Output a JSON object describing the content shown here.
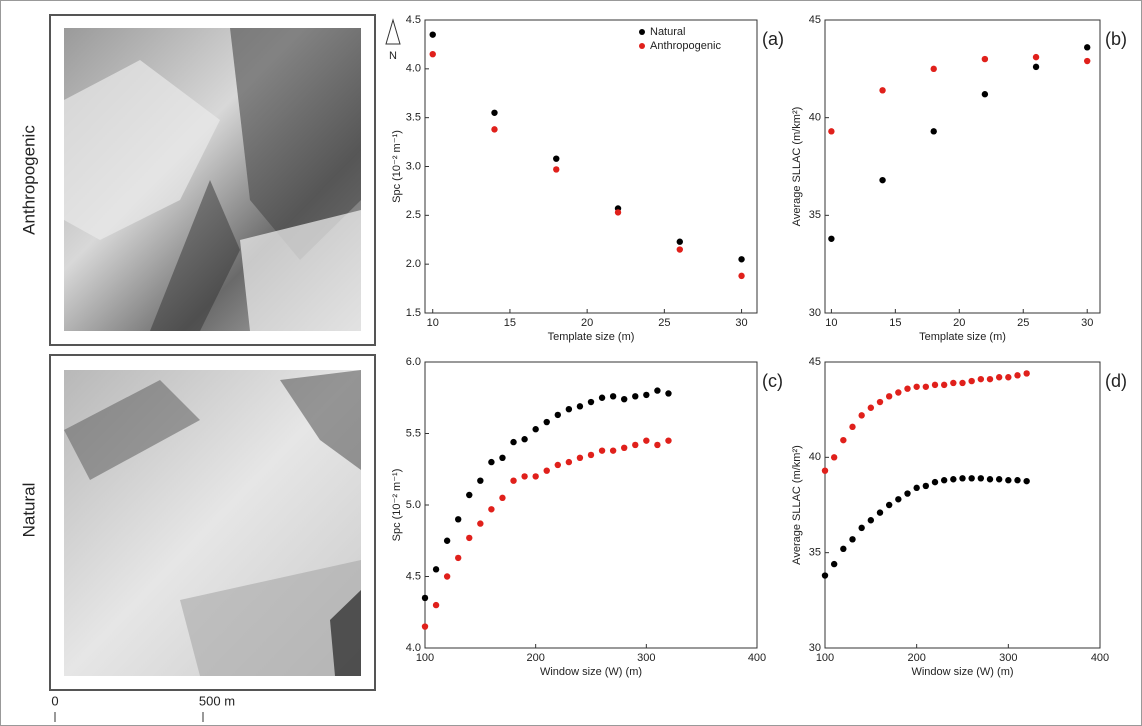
{
  "maps": {
    "top_label": "Anthropogenic",
    "bottom_label": "Natural",
    "north": "N",
    "scale_start": "0",
    "scale_end": "500 m"
  },
  "chart_data": [
    {
      "type": "scatter",
      "panel_label": "(a)",
      "x_label": "Template size (m)",
      "y_label": "Spc (10⁻² m⁻¹)",
      "x": [
        10,
        14,
        18,
        22,
        26,
        30
      ],
      "xlim": [
        9.5,
        31
      ],
      "xticks": [
        10,
        15,
        20,
        25,
        30
      ],
      "ylim": [
        1.5,
        4.5
      ],
      "yticks": [
        1.5,
        {
          "value": 2,
          "label": "2.0"
        },
        2.5,
        {
          "value": 3,
          "label": "3.0"
        },
        3.5,
        {
          "value": 4,
          "label": "4.0"
        },
        4.5
      ],
      "legend": "upper right",
      "series": [
        {
          "name": "Natural",
          "color": "#000000",
          "values": [
            4.35,
            3.55,
            3.08,
            2.57,
            2.23,
            2.05
          ]
        },
        {
          "name": "Anthropogenic",
          "color": "#e0201b",
          "values": [
            4.15,
            3.38,
            2.97,
            2.53,
            2.15,
            1.88
          ]
        }
      ]
    },
    {
      "type": "scatter",
      "panel_label": "(b)",
      "x_label": "Template size (m)",
      "y_label": "Average SLLAC (m/km²)",
      "x": [
        10,
        14,
        18,
        22,
        26,
        30
      ],
      "xlim": [
        9.5,
        31
      ],
      "xticks": [
        10,
        15,
        20,
        25,
        30
      ],
      "ylim": [
        30,
        45
      ],
      "yticks": [
        30,
        35,
        40,
        45
      ],
      "series": [
        {
          "color": "#000000",
          "values": [
            33.8,
            36.8,
            39.3,
            41.2,
            42.6,
            43.6
          ]
        },
        {
          "color": "#e0201b",
          "values": [
            39.3,
            41.4,
            42.5,
            43.0,
            43.1,
            42.9
          ]
        }
      ]
    },
    {
      "type": "scatter",
      "panel_label": "(c)",
      "x_label": "Window size (W) (m)",
      "y_label": "Spc (10⁻² m⁻¹)",
      "x": [
        100,
        110,
        120,
        130,
        140,
        150,
        160,
        170,
        180,
        190,
        200,
        210,
        220,
        230,
        240,
        250,
        260,
        270,
        280,
        290,
        300,
        310,
        320
      ],
      "xlim": [
        100,
        400
      ],
      "xticks": [
        100,
        200,
        300,
        400
      ],
      "ylim": [
        4,
        6
      ],
      "yticks": [
        {
          "value": 4,
          "label": "4.0"
        },
        4.5,
        {
          "value": 5,
          "label": "5.0"
        },
        5.5,
        {
          "value": 6,
          "label": "6.0"
        }
      ],
      "series": [
        {
          "color": "#000000",
          "values": [
            4.35,
            4.55,
            4.75,
            4.9,
            5.07,
            5.17,
            5.3,
            5.33,
            5.44,
            5.46,
            5.53,
            5.58,
            5.63,
            5.67,
            5.69,
            5.72,
            5.75,
            5.76,
            5.74,
            5.76,
            5.77,
            5.8,
            5.78
          ]
        },
        {
          "color": "#e0201b",
          "values": [
            4.15,
            4.3,
            4.5,
            4.63,
            4.77,
            4.87,
            4.97,
            5.05,
            5.17,
            5.2,
            5.2,
            5.24,
            5.28,
            5.3,
            5.33,
            5.35,
            5.38,
            5.38,
            5.4,
            5.42,
            5.45,
            5.42,
            5.45
          ]
        }
      ]
    },
    {
      "type": "scatter",
      "panel_label": "(d)",
      "x_label": "Window size (W) (m)",
      "y_label": "Average SLLAC (m/km²)",
      "x": [
        100,
        110,
        120,
        130,
        140,
        150,
        160,
        170,
        180,
        190,
        200,
        210,
        220,
        230,
        240,
        250,
        260,
        270,
        280,
        290,
        300,
        310,
        320
      ],
      "xlim": [
        100,
        400
      ],
      "xticks": [
        100,
        200,
        300,
        400
      ],
      "ylim": [
        30,
        45
      ],
      "yticks": [
        30,
        35,
        40,
        45
      ],
      "series": [
        {
          "color": "#000000",
          "values": [
            33.8,
            34.4,
            35.2,
            35.7,
            36.3,
            36.7,
            37.1,
            37.5,
            37.8,
            38.1,
            38.4,
            38.5,
            38.7,
            38.8,
            38.85,
            38.9,
            38.9,
            38.9,
            38.85,
            38.85,
            38.8,
            38.8,
            38.75
          ]
        },
        {
          "color": "#e0201b",
          "values": [
            39.3,
            40.0,
            40.9,
            41.6,
            42.2,
            42.6,
            42.9,
            43.2,
            43.4,
            43.6,
            43.7,
            43.7,
            43.8,
            43.8,
            43.9,
            43.9,
            44.0,
            44.1,
            44.1,
            44.2,
            44.2,
            44.3,
            44.4
          ]
        }
      ]
    }
  ]
}
